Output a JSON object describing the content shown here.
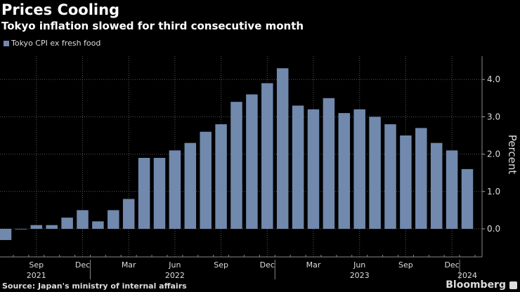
{
  "chart_data": {
    "type": "bar",
    "title": "Prices Cooling",
    "subtitle": "Tokyo inflation slowed for third consecutive month",
    "ylabel": "Percent",
    "source": "Source: Japan's ministry of internal affairs",
    "brand": "Bloomberg",
    "ylim": [
      -0.75,
      4.6
    ],
    "yticks": [
      "0.0",
      "1.0",
      "2.0",
      "3.0",
      "4.0"
    ],
    "grid": true,
    "legend_position": "top-left",
    "color": "#7189ad",
    "series": [
      {
        "name": "Tokyo CPI ex fresh food",
        "values": [
          -0.3,
          0.0,
          0.1,
          0.1,
          0.3,
          0.5,
          0.2,
          0.5,
          0.8,
          1.9,
          1.9,
          2.1,
          2.3,
          2.6,
          2.8,
          3.4,
          3.6,
          3.9,
          4.3,
          3.3,
          3.2,
          3.5,
          3.1,
          3.2,
          3.0,
          2.8,
          2.5,
          2.7,
          2.3,
          2.1,
          1.6
        ]
      }
    ],
    "categories": [
      "2021-07",
      "2021-08",
      "2021-09",
      "2021-10",
      "2021-11",
      "2021-12",
      "2022-01",
      "2022-02",
      "2022-03",
      "2022-04",
      "2022-05",
      "2022-06",
      "2022-07",
      "2022-08",
      "2022-09",
      "2022-10",
      "2022-11",
      "2022-12",
      "2023-01",
      "2023-02",
      "2023-03",
      "2023-04",
      "2023-05",
      "2023-06",
      "2023-07",
      "2023-08",
      "2023-09",
      "2023-10",
      "2023-11",
      "2023-12",
      "2024-01"
    ],
    "xtick_labels": [
      {
        "index": 2,
        "label": "Sep"
      },
      {
        "index": 5,
        "label": "Dec"
      },
      {
        "index": 8,
        "label": "Mar"
      },
      {
        "index": 11,
        "label": "Jun"
      },
      {
        "index": 14,
        "label": "Sep"
      },
      {
        "index": 17,
        "label": "Dec"
      },
      {
        "index": 20,
        "label": "Mar"
      },
      {
        "index": 23,
        "label": "Jun"
      },
      {
        "index": 26,
        "label": "Sep"
      },
      {
        "index": 29,
        "label": "Dec"
      }
    ],
    "year_labels": [
      {
        "index": 2,
        "label": "2021"
      },
      {
        "index": 11,
        "label": "2022"
      },
      {
        "index": 23,
        "label": "2023"
      },
      {
        "index": 30,
        "label": "2024"
      }
    ]
  }
}
